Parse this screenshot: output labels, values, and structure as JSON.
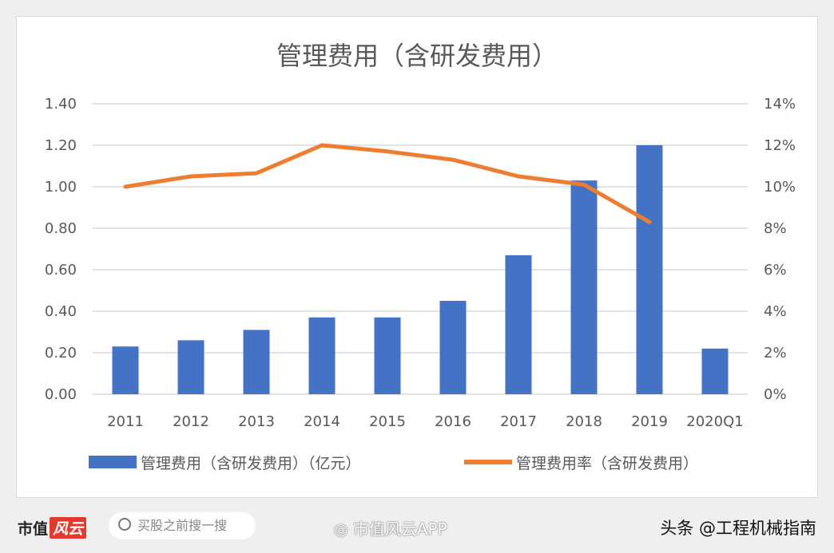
{
  "chart_data": {
    "type": "bar+line",
    "title": "管理费用（含研发费用）",
    "categories": [
      "2011",
      "2012",
      "2013",
      "2014",
      "2015",
      "2016",
      "2017",
      "2018",
      "2019",
      "2020Q1"
    ],
    "series": [
      {
        "name": "管理费用（含研发费用）（亿元）",
        "type": "bar",
        "axis": "left",
        "color": "#4472c4",
        "values": [
          0.23,
          0.26,
          0.31,
          0.37,
          0.37,
          0.45,
          0.67,
          1.03,
          1.2,
          0.22
        ]
      },
      {
        "name": "管理费用率（含研发费用）",
        "type": "line",
        "axis": "right",
        "color": "#ed7d31",
        "values": [
          10.0,
          10.5,
          10.65,
          12.0,
          11.7,
          11.3,
          10.5,
          10.1,
          8.3,
          null
        ]
      }
    ],
    "y_left": {
      "lim": [
        0,
        1.4
      ],
      "ticks": [
        "0.00",
        "0.20",
        "0.40",
        "0.60",
        "0.80",
        "1.00",
        "1.20",
        "1.40"
      ]
    },
    "y_right": {
      "lim": [
        0,
        14
      ],
      "ticks": [
        "0%",
        "2%",
        "4%",
        "6%",
        "8%",
        "10%",
        "12%",
        "14%"
      ]
    },
    "grid": true,
    "legend": "bottom"
  },
  "footer": {
    "brand": "市值",
    "brand_logo": "风云",
    "search_placeholder": "买股之前搜一搜",
    "watermark": "市值风云APP",
    "author": "头条 @工程机械指南"
  }
}
